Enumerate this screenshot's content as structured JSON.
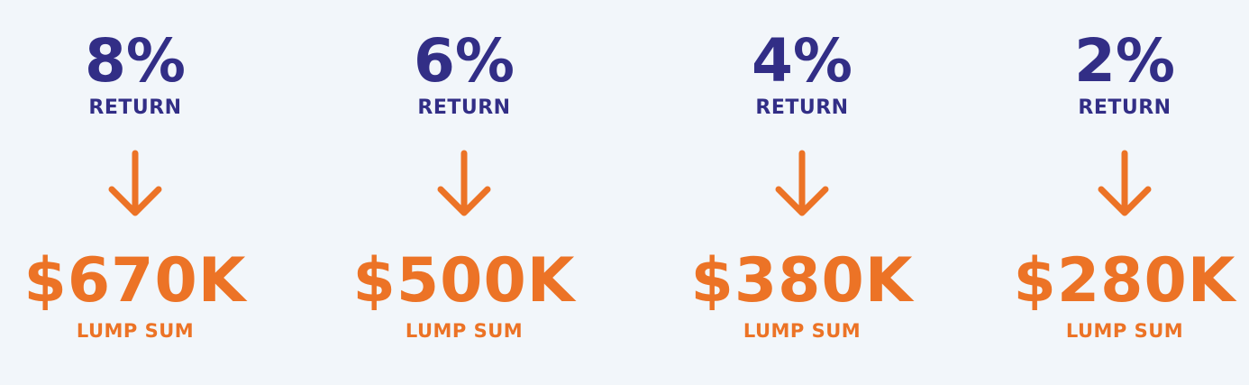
{
  "theme": {
    "rate_color": "#322e86",
    "amount_color": "#ec7326",
    "background": "#f2f6fa"
  },
  "scenarios": [
    {
      "rate": "8%",
      "rate_label": "RETURN",
      "amount": "$670K",
      "amount_label": "LUMP SUM",
      "arrow_icon": "arrow-down-icon"
    },
    {
      "rate": "6%",
      "rate_label": "RETURN",
      "amount": "$500K",
      "amount_label": "LUMP SUM",
      "arrow_icon": "arrow-down-icon"
    },
    {
      "rate": "4%",
      "rate_label": "RETURN",
      "amount": "$380K",
      "amount_label": "LUMP SUM",
      "arrow_icon": "arrow-down-icon"
    },
    {
      "rate": "2%",
      "rate_label": "RETURN",
      "amount": "$280K",
      "amount_label": "LUMP SUM",
      "arrow_icon": "arrow-down-icon"
    }
  ]
}
